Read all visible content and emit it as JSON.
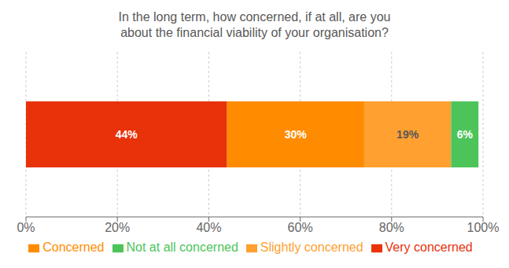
{
  "chart_data": {
    "type": "bar",
    "orientation": "horizontal",
    "stacked": true,
    "title": "In the long term, how concerned, if at all, are you\nabout the financial viability of your organisation?",
    "categories": [
      null
    ],
    "series": [
      {
        "name": "Very concerned",
        "color": "#e8320a",
        "values": [
          44
        ],
        "value_labels": [
          "44%"
        ]
      },
      {
        "name": "Concerned",
        "color": "#ff8c00",
        "values": [
          30
        ],
        "value_labels": [
          "30%"
        ]
      },
      {
        "name": "Slightly concerned",
        "color": "#ffa030",
        "values": [
          19
        ],
        "value_labels": [
          "19%"
        ]
      },
      {
        "name": "Not at all concerned",
        "color": "#4dc45a",
        "values": [
          6
        ],
        "value_labels": [
          "6%"
        ]
      }
    ],
    "xlim": [
      0,
      100
    ],
    "xticks": [
      {
        "value": 0,
        "label": "0%"
      },
      {
        "value": 20,
        "label": "20%"
      },
      {
        "value": 40,
        "label": "40%"
      },
      {
        "value": 60,
        "label": "60%"
      },
      {
        "value": 80,
        "label": "80%"
      },
      {
        "value": 100,
        "label": "100%"
      }
    ],
    "grid": true,
    "legend": "bottom",
    "data_labels": true
  }
}
